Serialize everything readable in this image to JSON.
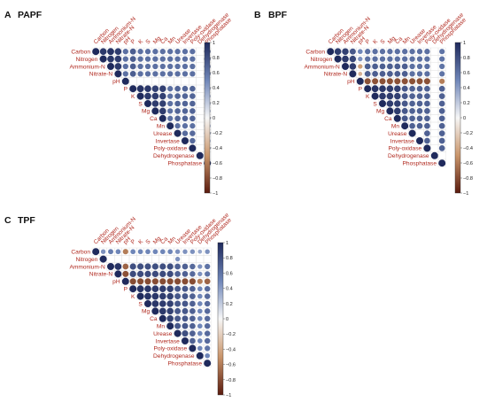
{
  "colors": {
    "positive_strong": "#1f2a5c",
    "positive_mid": "#6f86b8",
    "neutral": "#f7f7f7",
    "negative_mid": "#c9956b",
    "negative_strong": "#5a1b0e",
    "label_red": "#b0281e"
  },
  "chart_data": [
    {
      "type": "heatmap",
      "panel_letter": "A",
      "panel_name": "PAPF",
      "variables": [
        "Carbon",
        "Nitrogen",
        "Ammonium-N",
        "Nitrate-N",
        "pH",
        "P",
        "K",
        "S",
        "Mg",
        "Ca",
        "Mn",
        "Urease",
        "Invertase",
        "Poly-oxidase",
        "Dehydrogenase",
        "Phosphatase"
      ],
      "colorbar_ticks": [
        "1",
        "0.8",
        "0.6",
        "0.4",
        "0.2",
        "0",
        "−0.2",
        "−0.4",
        "−0.6",
        "−0.8",
        "−1"
      ],
      "colorbar_range": [
        -1,
        1
      ],
      "matrix": [
        [
          1,
          0.92,
          0.95,
          0.9,
          0.62,
          0.72,
          0.62,
          0.62,
          0.62,
          0.62,
          0.62,
          0.62,
          0.62,
          0.62,
          0,
          0.8
        ],
        [
          0.92,
          1,
          0.93,
          0.9,
          0.62,
          0.72,
          0.62,
          0.62,
          0.62,
          0.62,
          0.62,
          0.62,
          0.62,
          0.62,
          0,
          0.8
        ],
        [
          0.95,
          0.93,
          1,
          0.92,
          0.62,
          0.72,
          0.62,
          0.62,
          0.62,
          0.62,
          0.62,
          0.62,
          0.62,
          0.62,
          0,
          0.8
        ],
        [
          0.9,
          0.9,
          0.92,
          1,
          0.62,
          0.72,
          0.62,
          0.62,
          0.62,
          0.62,
          0.62,
          0.62,
          0.62,
          0.62,
          0,
          0.8
        ],
        [
          0.62,
          0.62,
          0.62,
          0.62,
          1,
          0,
          0,
          0,
          0,
          0,
          0,
          0,
          0,
          0,
          0,
          0
        ],
        [
          0.72,
          0.72,
          0.72,
          0.72,
          0,
          1,
          0.95,
          0.93,
          0.88,
          0.88,
          0.62,
          0.68,
          0.68,
          0.68,
          0,
          0.72
        ],
        [
          0.62,
          0.62,
          0.62,
          0.62,
          0,
          0.95,
          1,
          0.92,
          0.9,
          0.88,
          0.62,
          0.68,
          0.68,
          0.68,
          0,
          0.72
        ],
        [
          0.62,
          0.62,
          0.62,
          0.62,
          0,
          0.93,
          0.92,
          1,
          0.9,
          0.88,
          0.62,
          0.68,
          0.68,
          0.68,
          0,
          0.72
        ],
        [
          0.62,
          0.62,
          0.62,
          0.62,
          0,
          0.88,
          0.9,
          0.9,
          1,
          0.9,
          0.62,
          0.68,
          0.68,
          0.68,
          0,
          0.72
        ],
        [
          0.62,
          0.62,
          0.62,
          0.62,
          0,
          0.88,
          0.88,
          0.88,
          0.9,
          1,
          0.62,
          0.68,
          0.68,
          0.68,
          0,
          0.72
        ],
        [
          0.62,
          0.62,
          0.62,
          0.62,
          0,
          0.62,
          0.62,
          0.62,
          0.62,
          0.62,
          1,
          0.62,
          0.62,
          0.62,
          0,
          0.72
        ],
        [
          0.62,
          0.62,
          0.62,
          0.62,
          0,
          0.68,
          0.68,
          0.68,
          0.68,
          0.68,
          0.62,
          1,
          0.65,
          0.65,
          0,
          0.72
        ],
        [
          0.62,
          0.62,
          0.62,
          0.62,
          0,
          0.68,
          0.68,
          0.68,
          0.68,
          0.68,
          0.62,
          0.65,
          1,
          0.65,
          0,
          0.72
        ],
        [
          0.62,
          0.62,
          0.62,
          0.62,
          0,
          0.68,
          0.68,
          0.68,
          0.68,
          0.68,
          0.62,
          0.65,
          0.65,
          1,
          0,
          0.72
        ],
        [
          0,
          0,
          0,
          0,
          0,
          0,
          0,
          0,
          0,
          0,
          0,
          0,
          0,
          0,
          1,
          0
        ],
        [
          0.8,
          0.8,
          0.8,
          0.8,
          0,
          0.72,
          0.72,
          0.72,
          0.72,
          0.72,
          0.72,
          0.72,
          0.72,
          0.72,
          0,
          1
        ]
      ]
    },
    {
      "type": "heatmap",
      "panel_letter": "B",
      "panel_name": "BPF",
      "variables": [
        "Carbon",
        "Nitrogen",
        "Ammonium-N",
        "Nitrate-N",
        "pH",
        "P",
        "K",
        "S",
        "Mg",
        "Ca",
        "Mn",
        "Urease",
        "Invertase",
        "Poly-oxidase",
        "Dehydrogenase",
        "Phosphatase"
      ],
      "colorbar_ticks": [
        "1",
        "0.8",
        "0.6",
        "0.4",
        "0.2",
        "0",
        "−0.2",
        "−0.4",
        "−0.6",
        "−0.8",
        "−1"
      ],
      "colorbar_range": [
        -1,
        1
      ],
      "matrix": [
        [
          1,
          0.9,
          0.88,
          0.75,
          0.5,
          0.62,
          0.62,
          0.62,
          0.62,
          0.62,
          0.62,
          0.62,
          0.62,
          0.62,
          0,
          0.6
        ],
        [
          0.9,
          1,
          0.92,
          0.85,
          0.45,
          0.62,
          0.62,
          0.62,
          0.62,
          0.62,
          0.62,
          0.62,
          0.62,
          0.62,
          0,
          0.6
        ],
        [
          0.88,
          0.92,
          1,
          0.9,
          -0.45,
          0.72,
          0.72,
          0.72,
          0.72,
          0.72,
          0.72,
          0.62,
          0.62,
          0.62,
          0,
          0.6
        ],
        [
          0.75,
          0.85,
          0.9,
          1,
          -0.35,
          0.72,
          0.72,
          0.72,
          0.72,
          0.72,
          0.72,
          0.62,
          0.62,
          0.62,
          0,
          0.6
        ],
        [
          0.5,
          0.45,
          -0.45,
          -0.35,
          1,
          -0.78,
          -0.78,
          -0.78,
          -0.78,
          -0.78,
          -0.78,
          -0.78,
          -0.78,
          -0.78,
          0,
          -0.6
        ],
        [
          0.62,
          0.62,
          0.72,
          0.72,
          -0.78,
          1,
          0.95,
          0.93,
          0.9,
          0.88,
          0.75,
          0.7,
          0.7,
          0.7,
          0,
          0.7
        ],
        [
          0.62,
          0.62,
          0.72,
          0.72,
          -0.78,
          0.95,
          1,
          0.92,
          0.9,
          0.88,
          0.75,
          0.7,
          0.7,
          0.7,
          0,
          0.7
        ],
        [
          0.62,
          0.62,
          0.72,
          0.72,
          -0.78,
          0.93,
          0.92,
          1,
          0.9,
          0.88,
          0.75,
          0.7,
          0.7,
          0.7,
          0,
          0.7
        ],
        [
          0.62,
          0.62,
          0.72,
          0.72,
          -0.78,
          0.9,
          0.9,
          0.9,
          1,
          0.9,
          0.75,
          0.7,
          0.7,
          0.7,
          0,
          0.7
        ],
        [
          0.62,
          0.62,
          0.72,
          0.72,
          -0.78,
          0.88,
          0.88,
          0.88,
          0.9,
          1,
          0.75,
          0.7,
          0.7,
          0.7,
          0,
          0.7
        ],
        [
          0.62,
          0.62,
          0.72,
          0.72,
          -0.78,
          0.75,
          0.75,
          0.75,
          0.75,
          0.75,
          1,
          0.7,
          0.7,
          0.7,
          0,
          0.7
        ],
        [
          0.62,
          0.62,
          0.62,
          0.62,
          -0.78,
          0.7,
          0.7,
          0.7,
          0.7,
          0.7,
          0.7,
          1,
          0,
          0.7,
          0,
          0.7
        ],
        [
          0.62,
          0.62,
          0.62,
          0.62,
          -0.78,
          0.7,
          0.7,
          0.7,
          0.7,
          0.7,
          0.7,
          0,
          1,
          0.7,
          0,
          0.7
        ],
        [
          0.62,
          0.62,
          0.62,
          0.62,
          -0.78,
          0.7,
          0.7,
          0.7,
          0.7,
          0.7,
          0.7,
          0.7,
          0.7,
          1,
          0,
          0.7
        ],
        [
          0,
          0,
          0,
          0,
          0,
          0,
          0,
          0,
          0,
          0,
          0,
          0,
          0,
          0,
          1,
          0
        ],
        [
          0.6,
          0.6,
          0.6,
          0.6,
          -0.6,
          0.7,
          0.7,
          0.7,
          0.7,
          0.7,
          0.7,
          0.7,
          0.7,
          0.7,
          0,
          1
        ]
      ]
    },
    {
      "type": "heatmap",
      "panel_letter": "C",
      "panel_name": "TPF",
      "variables": [
        "Carbon",
        "Nitrogen",
        "Ammonium-N",
        "Nitrate-N",
        "pH",
        "P",
        "K",
        "S",
        "Mg",
        "Ca",
        "Mn",
        "Urease",
        "Invertase",
        "Poly-oxidase",
        "Dehydrogenase",
        "Phosphatase"
      ],
      "colorbar_ticks": [
        "1",
        "0.8",
        "0.6",
        "0.4",
        "0.2",
        "0",
        "−0.2",
        "−0.4",
        "−0.6",
        "−0.8",
        "−1"
      ],
      "colorbar_range": [
        -1,
        1
      ],
      "matrix": [
        [
          1,
          0.45,
          0.55,
          0.5,
          -0.6,
          0.5,
          0.5,
          0.5,
          0.5,
          0.5,
          0.5,
          0.45,
          0.45,
          0.45,
          0.35,
          0.45
        ],
        [
          0.45,
          1,
          0,
          0,
          0,
          0,
          0,
          0,
          0,
          0,
          0,
          0.45,
          0,
          0,
          0,
          0
        ],
        [
          0.55,
          0,
          1,
          0.95,
          -0.7,
          0.8,
          0.8,
          0.8,
          0.8,
          0.8,
          0.8,
          0.7,
          0.7,
          0.65,
          0.45,
          0.6
        ],
        [
          0.5,
          0,
          0.95,
          1,
          -0.78,
          0.82,
          0.82,
          0.82,
          0.82,
          0.82,
          0.82,
          0.7,
          0.7,
          0.65,
          0.45,
          0.6
        ],
        [
          -0.6,
          0,
          -0.7,
          -0.78,
          1,
          -0.8,
          -0.8,
          -0.8,
          -0.8,
          -0.8,
          -0.8,
          -0.8,
          -0.8,
          -0.8,
          -0.6,
          -0.7
        ],
        [
          0.5,
          0,
          0.8,
          0.82,
          -0.8,
          1,
          0.95,
          0.93,
          0.92,
          0.9,
          0.88,
          0.75,
          0.75,
          0.7,
          0.5,
          0.65
        ],
        [
          0.5,
          0,
          0.8,
          0.82,
          -0.8,
          0.95,
          1,
          0.95,
          0.93,
          0.9,
          0.88,
          0.75,
          0.75,
          0.7,
          0.5,
          0.65
        ],
        [
          0.5,
          0,
          0.8,
          0.82,
          -0.8,
          0.93,
          0.95,
          1,
          0.93,
          0.9,
          0.88,
          0.75,
          0.75,
          0.7,
          0.5,
          0.65
        ],
        [
          0.5,
          0,
          0.8,
          0.82,
          -0.8,
          0.92,
          0.93,
          0.93,
          1,
          0.92,
          0.88,
          0.75,
          0.75,
          0.7,
          0.5,
          0.65
        ],
        [
          0.5,
          0,
          0.8,
          0.82,
          -0.8,
          0.9,
          0.9,
          0.9,
          0.92,
          1,
          0.88,
          0.75,
          0.75,
          0.7,
          0.5,
          0.65
        ],
        [
          0.5,
          0,
          0.8,
          0.82,
          -0.8,
          0.88,
          0.88,
          0.88,
          0.88,
          0.88,
          1,
          0.75,
          0.75,
          0.7,
          0.5,
          0.65
        ],
        [
          0.45,
          0.45,
          0.7,
          0.7,
          -0.8,
          0.75,
          0.75,
          0.75,
          0.75,
          0.75,
          0.75,
          1,
          0.8,
          0.7,
          0.5,
          0.65
        ],
        [
          0.45,
          0,
          0.7,
          0.7,
          -0.8,
          0.75,
          0.75,
          0.75,
          0.75,
          0.75,
          0.75,
          0.8,
          1,
          0.7,
          0.5,
          0.65
        ],
        [
          0.45,
          0,
          0.65,
          0.65,
          -0.8,
          0.7,
          0.7,
          0.7,
          0.7,
          0.7,
          0.7,
          0.7,
          0.7,
          1,
          0.5,
          0.6
        ],
        [
          0.35,
          0,
          0.45,
          0.45,
          -0.6,
          0.5,
          0.5,
          0.5,
          0.5,
          0.5,
          0.5,
          0.5,
          0.5,
          0.5,
          1,
          0.5
        ],
        [
          0.45,
          0,
          0.6,
          0.6,
          -0.7,
          0.65,
          0.65,
          0.65,
          0.65,
          0.65,
          0.65,
          0.65,
          0.65,
          0.6,
          0.5,
          1
        ]
      ]
    }
  ]
}
